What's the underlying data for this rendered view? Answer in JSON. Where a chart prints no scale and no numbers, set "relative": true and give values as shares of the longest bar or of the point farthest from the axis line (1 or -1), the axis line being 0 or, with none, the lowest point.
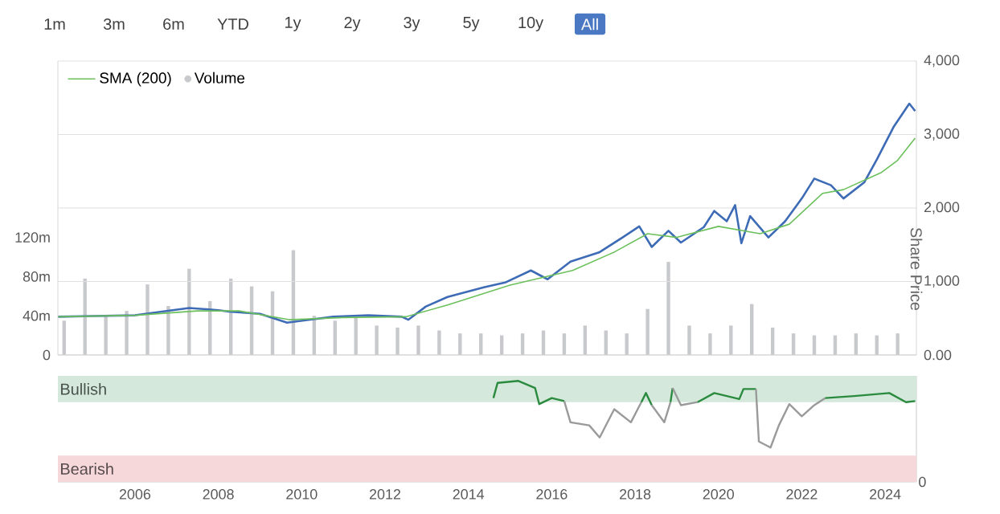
{
  "chart_data": [
    {
      "type": "line",
      "annotations": [
        "1m",
        "3m",
        "6m",
        "YTD",
        "1y",
        "2y",
        "3y",
        "5y",
        "10y",
        "All"
      ],
      "ylabel": "Share Price",
      "xlim": [
        2004.15,
        2024.75
      ],
      "ylim": [
        0,
        4000
      ],
      "yticks": [
        {
          "value": 0,
          "label": "0.00"
        },
        {
          "value": 1000,
          "label": "1,000"
        },
        {
          "value": 2000,
          "label": "2,000"
        },
        {
          "value": 3000,
          "label": "3,000"
        },
        {
          "value": 4000,
          "label": "4,000"
        }
      ],
      "y2lim": [
        0,
        300
      ],
      "y2ticks": [
        0,
        {
          "value": 40,
          "label": "40m"
        },
        {
          "value": 80,
          "label": "80m"
        },
        {
          "value": 120,
          "label": "120m"
        }
      ],
      "grid": "y",
      "legend": "top left",
      "tick_labels": "y",
      "series": [
        {
          "color": "#3d6bb5",
          "x": [
            2004.16,
            2005.0,
            2006.0,
            2007.3,
            2008.0,
            2008.26,
            2009.0,
            2009.65,
            2010.2,
            2010.76,
            2011.6,
            2012.4,
            2012.56,
            2012.98,
            2013.5,
            2014.37,
            2014.9,
            2015.5,
            2015.9,
            2016.45,
            2017.15,
            2017.7,
            2018.1,
            2018.4,
            2018.8,
            2019.1,
            2019.65,
            2019.9,
            2020.2,
            2020.4,
            2020.55,
            2020.76,
            2021.2,
            2021.6,
            2022.0,
            2022.3,
            2022.7,
            2023.0,
            2023.5,
            2023.8,
            2024.2,
            2024.58,
            2024.72
          ],
          "values": [
            520,
            530,
            540,
            640,
            610,
            590,
            560,
            440,
            480,
            520,
            540,
            520,
            480,
            660,
            790,
            920,
            990,
            1150,
            1030,
            1270,
            1400,
            1600,
            1750,
            1470,
            1690,
            1530,
            1740,
            1960,
            1820,
            2040,
            1520,
            1890,
            1600,
            1820,
            2130,
            2400,
            2310,
            2130,
            2350,
            2660,
            3100,
            3420,
            3320
          ]
        },
        {
          "name": "SMA (200)",
          "color": "#6cc05c",
          "x": [
            2004.16,
            2006.0,
            2007.5,
            2008.5,
            2009.7,
            2011.0,
            2012.5,
            2013.5,
            2015.0,
            2016.5,
            2017.5,
            2018.3,
            2019.0,
            2020.0,
            2021.0,
            2021.7,
            2022.5,
            2023.0,
            2023.9,
            2024.3,
            2024.72
          ],
          "values": [
            520,
            540,
            600,
            600,
            480,
            510,
            520,
            680,
            950,
            1150,
            1400,
            1650,
            1600,
            1750,
            1650,
            1780,
            2200,
            2250,
            2480,
            2650,
            2950
          ]
        },
        {
          "name": "Volume",
          "type": "bar",
          "axis": "y2",
          "color": "#c8c9cc",
          "x": [
            2004.3,
            2004.8,
            2005.3,
            2005.8,
            2006.3,
            2006.8,
            2007.3,
            2007.8,
            2008.3,
            2008.8,
            2009.3,
            2009.8,
            2010.3,
            2010.8,
            2011.3,
            2011.8,
            2012.3,
            2012.8,
            2013.3,
            2013.8,
            2014.3,
            2014.8,
            2015.3,
            2015.8,
            2016.3,
            2016.8,
            2017.3,
            2017.8,
            2018.3,
            2018.8,
            2019.3,
            2019.8,
            2020.3,
            2020.8,
            2021.3,
            2021.8,
            2022.3,
            2022.8,
            2023.3,
            2023.8,
            2024.3
          ],
          "values": [
            35,
            78,
            40,
            45,
            72,
            50,
            88,
            55,
            78,
            70,
            65,
            107,
            40,
            35,
            38,
            30,
            28,
            30,
            25,
            22,
            22,
            20,
            22,
            25,
            22,
            30,
            25,
            22,
            47,
            95,
            30,
            22,
            30,
            52,
            28,
            22,
            20,
            20,
            22,
            20,
            22
          ]
        }
      ]
    },
    {
      "type": "line",
      "xlim": [
        2004.15,
        2024.75
      ],
      "relative": true,
      "annotations": [
        "0"
      ],
      "xticks": [
        2006,
        2008,
        2010,
        2012,
        2014,
        2016,
        2018,
        2020,
        2022,
        2024
      ],
      "bands": [
        {
          "axis": "y",
          "from": 0.79,
          "to": 1.05,
          "label": "Bullish",
          "color": "#d4e9dc"
        },
        {
          "axis": "y",
          "from": 0,
          "to": 0.26,
          "label": "Bearish",
          "color": "#f6d8da"
        }
      ],
      "series": [
        {
          "color": "#2a8a3e",
          "x": [
            2014.6,
            2014.7,
            2015.2,
            2015.6,
            2015.7,
            2016.0,
            2016.3
          ],
          "values": [
            0.83,
            0.98,
            1,
            0.93,
            0.77,
            0.83,
            0.8
          ]
        },
        {
          "color": "#9a9a9a",
          "x": [
            2016.3,
            2016.45,
            2016.9,
            2017.15,
            2017.5,
            2017.9,
            2018.15
          ],
          "values": [
            0.8,
            0.59,
            0.56,
            0.44,
            0.72,
            0.59,
            0.79
          ]
        },
        {
          "color": "#2a8a3e",
          "x": [
            2018.15,
            2018.26,
            2018.4
          ],
          "values": [
            0.79,
            0.88,
            0.76
          ]
        },
        {
          "color": "#9a9a9a",
          "x": [
            2018.4,
            2018.7,
            2018.85
          ],
          "values": [
            0.76,
            0.59,
            0.79
          ]
        },
        {
          "color": "#2a8a3e",
          "x": [
            2018.85,
            2018.9
          ],
          "values": [
            0.79,
            0.93
          ]
        },
        {
          "color": "#9a9a9a",
          "x": [
            2018.9,
            2019.1,
            2019.5
          ],
          "values": [
            0.93,
            0.76,
            0.79
          ]
        },
        {
          "color": "#2a8a3e",
          "x": [
            2019.5,
            2019.9,
            2020.5,
            2020.6,
            2020.9
          ],
          "values": [
            0.79,
            0.88,
            0.82,
            0.92,
            0.92
          ]
        },
        {
          "color": "#9a9a9a",
          "x": [
            2020.9,
            2020.97,
            2021.25,
            2021.45,
            2021.7,
            2022.0,
            2022.3,
            2022.56
          ],
          "values": [
            0.92,
            0.4,
            0.34,
            0.56,
            0.77,
            0.65,
            0.76,
            0.83
          ]
        },
        {
          "color": "#2a8a3e",
          "x": [
            2022.56,
            2023.26,
            2024.1,
            2024.5,
            2024.72
          ],
          "values": [
            0.83,
            0.85,
            0.88,
            0.79,
            0.8
          ]
        }
      ]
    }
  ]
}
